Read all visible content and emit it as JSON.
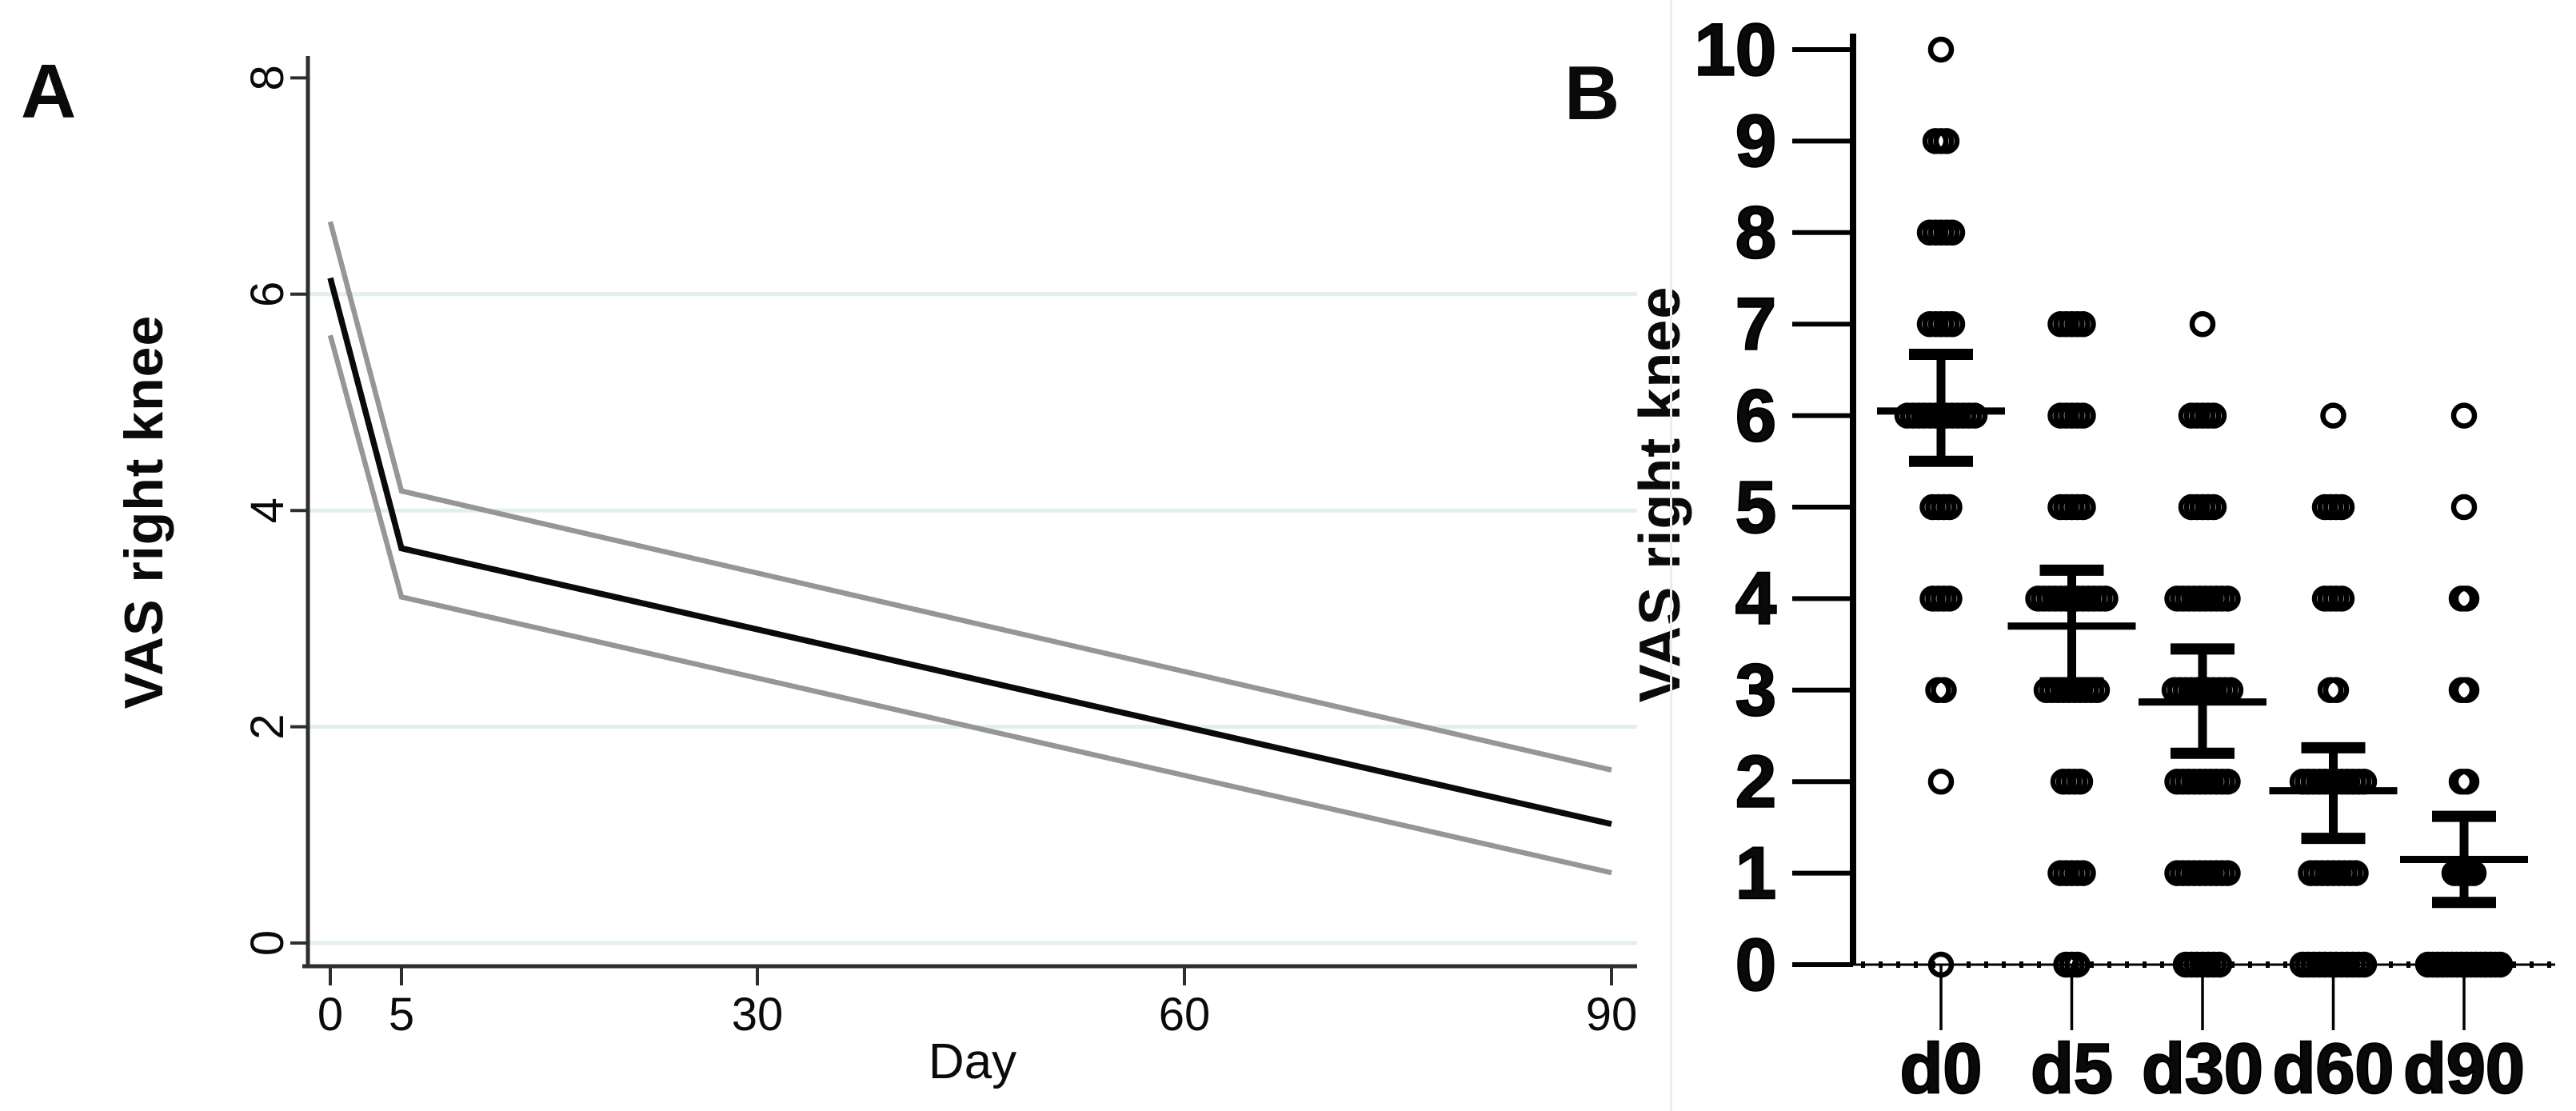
{
  "figure": {
    "panel_a": {
      "letter": "A",
      "y_axis_label": "VAS right knee",
      "x_axis_label": "Day"
    },
    "panel_b": {
      "letter": "B",
      "y_axis_label": "VAS right knee"
    }
  },
  "chart_data": [
    {
      "id": "panel_a",
      "type": "line",
      "title": "",
      "xlabel": "Day",
      "ylabel": "VAS right knee",
      "xlim": [
        0,
        90
      ],
      "ylim": [
        0,
        8.3
      ],
      "x_ticks": [
        0,
        5,
        30,
        60,
        90
      ],
      "y_ticks": [
        0,
        2,
        4,
        6,
        8
      ],
      "gridlines_at": [
        0,
        2,
        4,
        6
      ],
      "grid_color": "#e2eef0",
      "axis_color": "#2e2e2e",
      "legend": "none",
      "series": [
        {
          "name": "ci_upper",
          "color": "#969696",
          "width": 6.5,
          "x": [
            0,
            5,
            90
          ],
          "y": [
            6.67,
            4.18,
            1.6
          ]
        },
        {
          "name": "ci_lower",
          "color": "#969696",
          "width": 6.5,
          "x": [
            0,
            5,
            90
          ],
          "y": [
            5.62,
            3.2,
            0.65
          ]
        },
        {
          "name": "mean",
          "color": "#0a0a0a",
          "width": 7.5,
          "x": [
            0,
            5,
            90
          ],
          "y": [
            6.15,
            3.65,
            1.1
          ]
        }
      ]
    },
    {
      "id": "panel_b",
      "type": "scatter",
      "title": "",
      "xlabel": "",
      "ylabel": "VAS right knee",
      "ylim": [
        0,
        10
      ],
      "y_ticks": [
        0,
        1,
        2,
        3,
        4,
        5,
        6,
        7,
        8,
        9,
        10
      ],
      "categories": [
        "d0",
        "d5",
        "d30",
        "d60",
        "d90"
      ],
      "marker": "open-circle",
      "marker_color": "#000000",
      "points": [
        {
          "category": "d0",
          "counts": {
            "10": 1,
            "9": 3,
            "8": 5,
            "7": 5,
            "6": 13,
            "5": 4,
            "4": 4,
            "3": 2,
            "2": 1,
            "0": 1
          },
          "overlap_step": 7
        },
        {
          "category": "d5",
          "counts": {
            "7": 5,
            "6": 5,
            "5": 5,
            "4": 13,
            "3": 10,
            "2": 4,
            "1": 5,
            "0": 3
          },
          "overlap_step": 7
        },
        {
          "category": "d30",
          "counts": {
            "7": 1,
            "6": 5,
            "5": 5,
            "4": 10,
            "3": 11,
            "2": 10,
            "1": 10,
            "0": 7
          },
          "overlap_step": 7
        },
        {
          "category": "d60",
          "counts": {
            "6": 1,
            "5": 4,
            "4": 4,
            "3": 2,
            "2": 12,
            "1": 9,
            "0": 12
          },
          "overlap_step": 7
        },
        {
          "category": "d90",
          "counts": {
            "6": 1,
            "5": 1,
            "4": 2,
            "3": 2,
            "2": 2,
            "1": 5,
            "0": 16
          },
          "overlap_step": 6
        }
      ],
      "error_bars": [
        {
          "category": "d0",
          "mean": 6.05,
          "lo": 5.5,
          "hi": 6.67
        },
        {
          "category": "d5",
          "mean": 3.7,
          "lo": 3.08,
          "hi": 4.31
        },
        {
          "category": "d30",
          "mean": 2.87,
          "lo": 2.31,
          "hi": 3.45
        },
        {
          "category": "d60",
          "mean": 1.9,
          "lo": 1.38,
          "hi": 2.37
        },
        {
          "category": "d90",
          "mean": 1.15,
          "lo": 0.68,
          "hi": 1.62
        }
      ]
    }
  ]
}
